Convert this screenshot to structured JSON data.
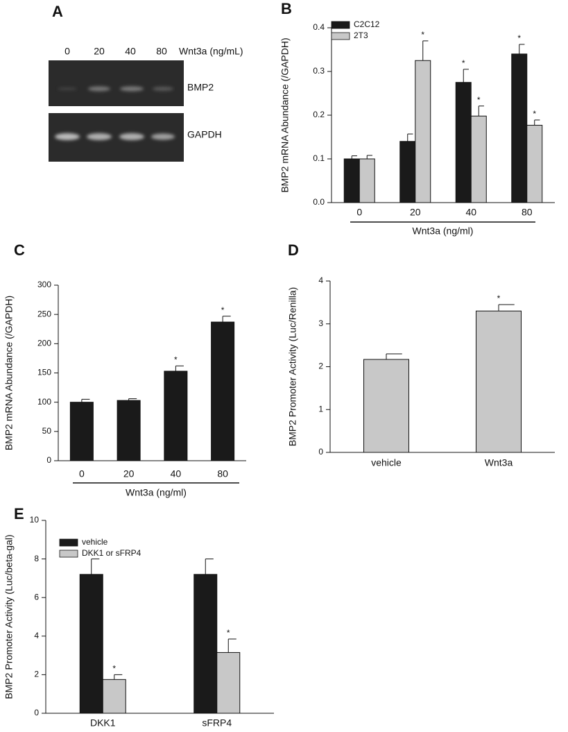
{
  "panel_a": {
    "label": "A",
    "lanes": [
      "0",
      "20",
      "40",
      "80"
    ],
    "treatment": "Wnt3a (ng/mL)",
    "bands": [
      "BMP2",
      "GAPDH"
    ]
  },
  "chart_data": [
    {
      "type": "bar",
      "panel": "B",
      "y_label": "BMP2 mRNA Abundance (/GAPDH)",
      "x_label": "Wnt3a (ng/ml)",
      "categories": [
        "0",
        "20",
        "40",
        "80"
      ],
      "series": [
        {
          "name": "C2C12",
          "color": "#1a1a1a",
          "values": [
            0.1,
            0.14,
            0.275,
            0.34
          ],
          "errors": [
            0.007,
            0.017,
            0.03,
            0.022
          ],
          "stars": [
            null,
            null,
            "*",
            "*"
          ]
        },
        {
          "name": "2T3",
          "color": "#c8c8c8",
          "values": [
            0.1,
            0.325,
            0.198,
            0.177
          ],
          "errors": [
            0.008,
            0.045,
            0.023,
            0.012
          ],
          "stars": [
            null,
            "*",
            "*",
            "*"
          ]
        }
      ],
      "ylim": [
        0,
        0.4
      ],
      "yticks": [
        {
          "value": 0,
          "label": "0.0"
        },
        0.1,
        0.2,
        0.3,
        0.4
      ],
      "legend": "top-left"
    },
    {
      "type": "bar",
      "panel": "C",
      "y_label": "BMP2 mRNA Abundance (/GAPDH)",
      "x_label": "Wnt3a  (ng/ml)",
      "categories": [
        "0",
        "20",
        "40",
        "80"
      ],
      "color": "#1a1a1a",
      "values": [
        100,
        103,
        153,
        237
      ],
      "errors": [
        5,
        3,
        9,
        10
      ],
      "stars": [
        null,
        null,
        "*",
        "*"
      ],
      "ylim": [
        0,
        300
      ],
      "yticks": [
        0,
        50,
        100,
        150,
        200,
        250,
        300
      ]
    },
    {
      "type": "bar",
      "panel": "D",
      "y_label": "BMP2 Promoter Activity (Luc/Renilla)",
      "categories": [
        "vehicle",
        "Wnt3a"
      ],
      "color": "#c8c8c8",
      "values": [
        2.17,
        3.3
      ],
      "errors": [
        0.13,
        0.15
      ],
      "stars": [
        null,
        "*"
      ],
      "ylim": [
        0,
        4
      ],
      "yticks": [
        0,
        1,
        2,
        3,
        4
      ]
    },
    {
      "type": "bar",
      "panel": "E",
      "y_label": "BMP2 Promoter Activity (Luc/beta-gal)",
      "categories": [
        "DKK1",
        "sFRP4"
      ],
      "series": [
        {
          "name": "vehicle",
          "color": "#1a1a1a",
          "values": [
            7.2,
            7.2
          ],
          "errors": [
            0.8,
            0.8
          ],
          "stars": [
            null,
            null
          ]
        },
        {
          "name": "DKK1 or sFRP4",
          "color": "#c8c8c8",
          "values": [
            1.75,
            3.15
          ],
          "errors": [
            0.25,
            0.7
          ],
          "stars": [
            "*",
            "*"
          ]
        }
      ],
      "ylim": [
        0,
        10
      ],
      "yticks": [
        0,
        2,
        4,
        6,
        8,
        10
      ],
      "legend": "top-left"
    }
  ]
}
